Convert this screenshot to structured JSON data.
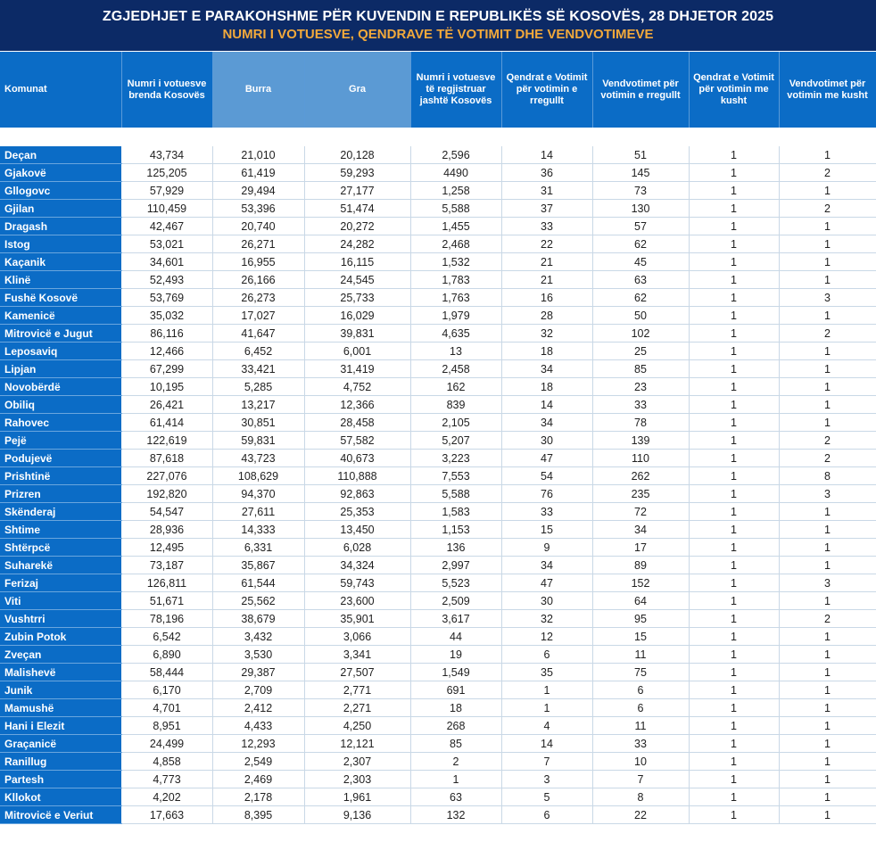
{
  "title": "ZGJEDHJET E PARAKOHSHME PËR KUVENDIN E REPUBLIKËS SË KOSOVËS, 28 DHJETOR 2025",
  "subtitle": "NUMRI I VOTUESVE, QENDRAVE TË VOTIMIT DHE VENDVOTIMEVE",
  "colors": {
    "title_bg": "#0c2a66",
    "subtitle": "#f2a93b",
    "header_bg": "#0b6cc6",
    "header_light": "#5b9ad4"
  },
  "columns": [
    "Komunat",
    "Numri i votuesve brenda Kosovës",
    "Burra",
    "Gra",
    "Numri i votuesve të regjistruar jashtë Kosovës",
    "Qendrat e Votimit për votimin e rregullt",
    "Vendvotimet për votimin e rregullt",
    "Qendrat e Votimit për votimin me kusht",
    "Vendvotimet për votimin me kusht"
  ],
  "rows": [
    [
      "Deçan",
      "43,734",
      "21,010",
      "20,128",
      "2,596",
      "14",
      "51",
      "1",
      "1"
    ],
    [
      "Gjakovë",
      "125,205",
      "61,419",
      "59,293",
      "4490",
      "36",
      "145",
      "1",
      "2"
    ],
    [
      "Gllogovc",
      "57,929",
      "29,494",
      "27,177",
      "1,258",
      "31",
      "73",
      "1",
      "1"
    ],
    [
      "Gjilan",
      "110,459",
      "53,396",
      "51,474",
      "5,588",
      "37",
      "130",
      "1",
      "2"
    ],
    [
      "Dragash",
      "42,467",
      "20,740",
      "20,272",
      "1,455",
      "33",
      "57",
      "1",
      "1"
    ],
    [
      "Istog",
      "53,021",
      "26,271",
      "24,282",
      "2,468",
      "22",
      "62",
      "1",
      "1"
    ],
    [
      "Kaçanik",
      "34,601",
      "16,955",
      "16,115",
      "1,532",
      "21",
      "45",
      "1",
      "1"
    ],
    [
      "Klinë",
      "52,493",
      "26,166",
      "24,545",
      "1,783",
      "21",
      "63",
      "1",
      "1"
    ],
    [
      "Fushë Kosovë",
      "53,769",
      "26,273",
      "25,733",
      "1,763",
      "16",
      "62",
      "1",
      "3"
    ],
    [
      "Kamenicë",
      "35,032",
      "17,027",
      "16,029",
      "1,979",
      "28",
      "50",
      "1",
      "1"
    ],
    [
      "Mitrovicë e Jugut",
      "86,116",
      "41,647",
      "39,831",
      "4,635",
      "32",
      "102",
      "1",
      "2"
    ],
    [
      "Leposaviq",
      "12,466",
      "6,452",
      "6,001",
      "13",
      "18",
      "25",
      "1",
      "1"
    ],
    [
      "Lipjan",
      "67,299",
      "33,421",
      "31,419",
      "2,458",
      "34",
      "85",
      "1",
      "1"
    ],
    [
      "Novobërdë",
      "10,195",
      "5,285",
      "4,752",
      "162",
      "18",
      "23",
      "1",
      "1"
    ],
    [
      "Obiliq",
      "26,421",
      "13,217",
      "12,366",
      "839",
      "14",
      "33",
      "1",
      "1"
    ],
    [
      "Rahovec",
      "61,414",
      "30,851",
      "28,458",
      "2,105",
      "34",
      "78",
      "1",
      "1"
    ],
    [
      "Pejë",
      "122,619",
      "59,831",
      "57,582",
      "5,207",
      "30",
      "139",
      "1",
      "2"
    ],
    [
      "Podujevë",
      "87,618",
      "43,723",
      "40,673",
      "3,223",
      "47",
      "110",
      "1",
      "2"
    ],
    [
      "Prishtinë",
      "227,076",
      "108,629",
      "110,888",
      "7,553",
      "54",
      "262",
      "1",
      "8"
    ],
    [
      "Prizren",
      "192,820",
      "94,370",
      "92,863",
      "5,588",
      "76",
      "235",
      "1",
      "3"
    ],
    [
      "Skënderaj",
      "54,547",
      "27,611",
      "25,353",
      "1,583",
      "33",
      "72",
      "1",
      "1"
    ],
    [
      "Shtime",
      "28,936",
      "14,333",
      "13,450",
      "1,153",
      "15",
      "34",
      "1",
      "1"
    ],
    [
      "Shtërpcë",
      "12,495",
      "6,331",
      "6,028",
      "136",
      "9",
      "17",
      "1",
      "1"
    ],
    [
      "Suharekë",
      "73,187",
      "35,867",
      "34,324",
      "2,997",
      "34",
      "89",
      "1",
      "1"
    ],
    [
      "Ferizaj",
      "126,811",
      "61,544",
      "59,743",
      "5,523",
      "47",
      "152",
      "1",
      "3"
    ],
    [
      "Viti",
      "51,671",
      "25,562",
      "23,600",
      "2,509",
      "30",
      "64",
      "1",
      "1"
    ],
    [
      "Vushtrri",
      "78,196",
      "38,679",
      "35,901",
      "3,617",
      "32",
      "95",
      "1",
      "2"
    ],
    [
      "Zubin Potok",
      "6,542",
      "3,432",
      "3,066",
      "44",
      "12",
      "15",
      "1",
      "1"
    ],
    [
      "Zveçan",
      "6,890",
      "3,530",
      "3,341",
      "19",
      "6",
      "11",
      "1",
      "1"
    ],
    [
      "Malishevë",
      "58,444",
      "29,387",
      "27,507",
      "1,549",
      "35",
      "75",
      "1",
      "1"
    ],
    [
      "Junik",
      "6,170",
      "2,709",
      "2,771",
      "691",
      "1",
      "6",
      "1",
      "1"
    ],
    [
      "Mamushë",
      "4,701",
      "2,412",
      "2,271",
      "18",
      "1",
      "6",
      "1",
      "1"
    ],
    [
      "Hani i Elezit",
      "8,951",
      "4,433",
      "4,250",
      "268",
      "4",
      "11",
      "1",
      "1"
    ],
    [
      "Graçanicë",
      "24,499",
      "12,293",
      "12,121",
      "85",
      "14",
      "33",
      "1",
      "1"
    ],
    [
      "Ranillug",
      "4,858",
      "2,549",
      "2,307",
      "2",
      "7",
      "10",
      "1",
      "1"
    ],
    [
      "Partesh",
      "4,773",
      "2,469",
      "2,303",
      "1",
      "3",
      "7",
      "1",
      "1"
    ],
    [
      "Kllokot",
      "4,202",
      "2,178",
      "1,961",
      "63",
      "5",
      "8",
      "1",
      "1"
    ],
    [
      "Mitrovicë e Veriut",
      "17,663",
      "8,395",
      "9,136",
      "132",
      "6",
      "22",
      "1",
      "1"
    ]
  ]
}
